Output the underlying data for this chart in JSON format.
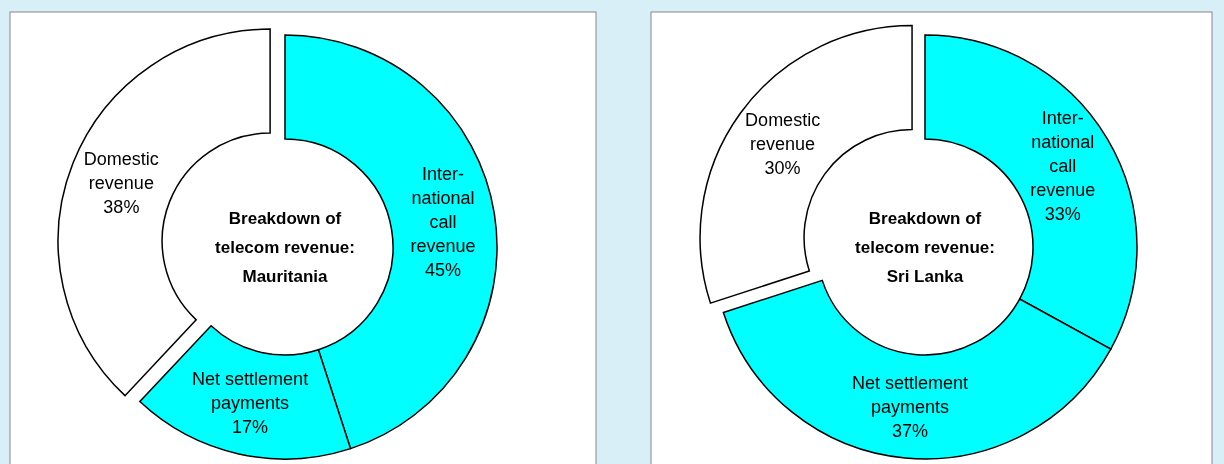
{
  "chart_data": [
    {
      "type": "donut",
      "title": "Breakdown of\ntelecom revenue:\nMauritania",
      "categories": [
        "Inter-\nnational\ncall\nrevenue",
        "Net settlement\npayments",
        "Domestic\nrevenue"
      ],
      "values": [
        45,
        17,
        38
      ],
      "colors": [
        "#00ffff",
        "#00ffff",
        "#ffffff"
      ],
      "value_labels": [
        "45%",
        "17%",
        "38%"
      ]
    },
    {
      "type": "donut",
      "title": "Breakdown of\ntelecom revenue:\nSri Lanka",
      "categories": [
        "Inter-\nnational\ncall\nrevenue",
        "Net settlement\npayments",
        "Domestic\nrevenue"
      ],
      "values": [
        33,
        37,
        30
      ],
      "colors": [
        "#00ffff",
        "#00ffff",
        "#ffffff"
      ],
      "value_labels": [
        "33%",
        "37%",
        "30%"
      ]
    }
  ]
}
